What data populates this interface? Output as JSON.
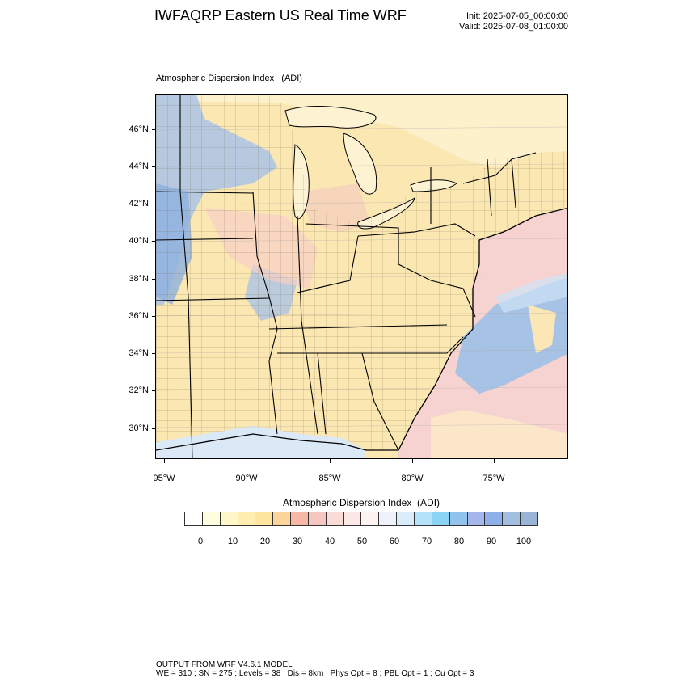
{
  "header": {
    "title": "IWFAQRP Eastern US Real Time WRF",
    "init": "Init: 2025-07-05_00:00:00",
    "valid": "Valid: 2025-07-08_01:00:00"
  },
  "map": {
    "label": "Atmospheric Dispersion Index   (ADI)",
    "lat_labels": [
      "46°N",
      "44°N",
      "42°N",
      "40°N",
      "38°N",
      "36°N",
      "34°N",
      "32°N",
      "30°N"
    ],
    "lon_labels": [
      "95°W",
      "90°W",
      "85°W",
      "80°W",
      "75°W"
    ]
  },
  "colorbar": {
    "title": "Atmospheric Dispersion Index  (ADI)",
    "labels": [
      "0",
      "10",
      "20",
      "30",
      "40",
      "50",
      "60",
      "70",
      "80",
      "90",
      "100"
    ],
    "colors": [
      "#ffffff",
      "#fffde0",
      "#fff7c8",
      "#ffeeb0",
      "#ffe6a0",
      "#fcd59c",
      "#f8b8a6",
      "#f6c6c0",
      "#fadcd6",
      "#fbe8e6",
      "#fdf4f2",
      "#f0f2fb",
      "#d8ecfa",
      "#b4e2f8",
      "#8cd4f4",
      "#92c2ee",
      "#a4b6ec",
      "#8eb0ea",
      "#a2bfe0",
      "#9ab4d6"
    ]
  },
  "footer": {
    "line1": "OUTPUT FROM WRF V4.6.1 MODEL",
    "line2": "WE = 310 ; SN = 275 ; Levels = 38 ; Dis = 8km ; Phys Opt = 8 ; PBL Opt = 1 ; Cu Opt = 3"
  }
}
